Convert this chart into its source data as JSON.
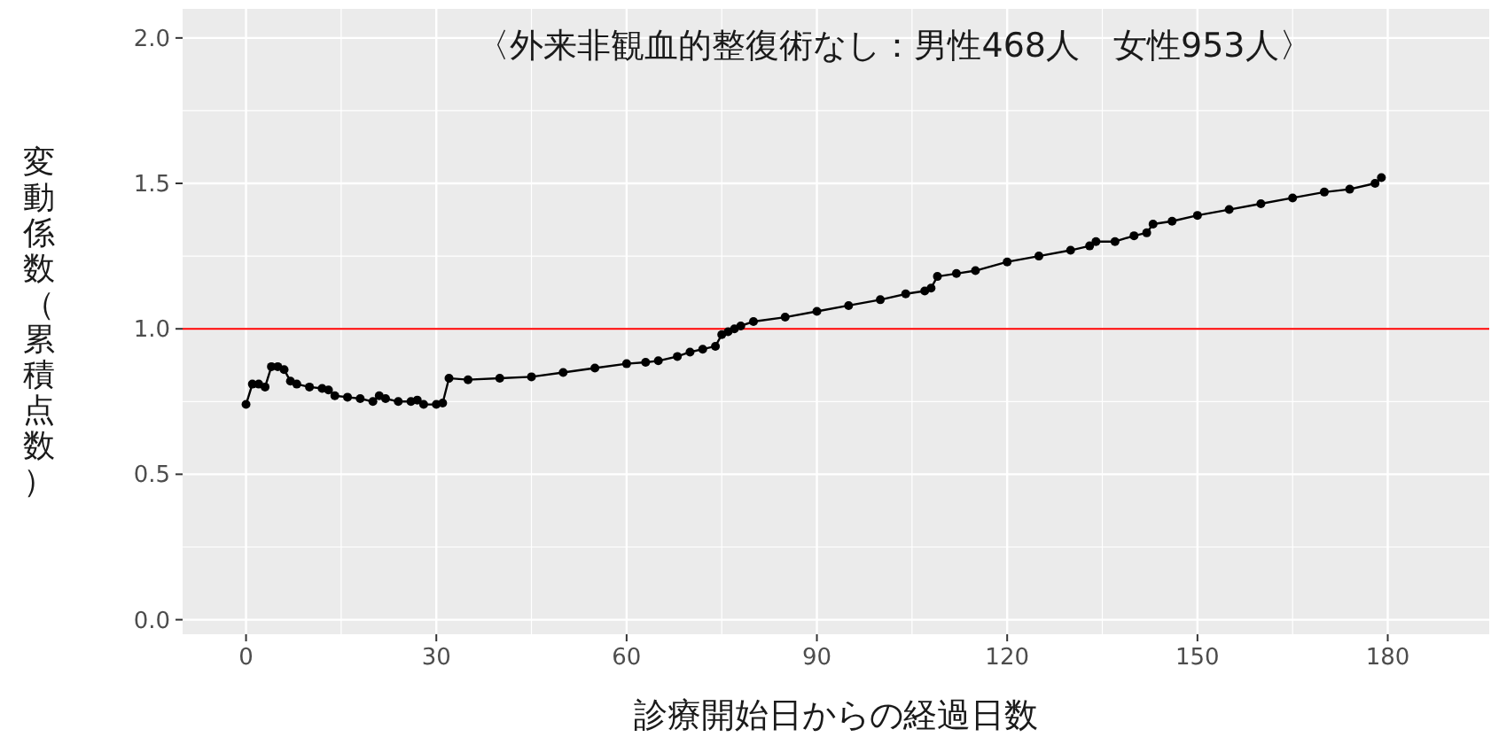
{
  "chart_data": {
    "type": "line",
    "title": "〈外来非観血的整復術なし：男性468人　女性953人〉",
    "xlabel": "診療開始日からの経過日数",
    "ylabel": "変動係数（累積点数）",
    "x": [
      0,
      1,
      2,
      3,
      4,
      5,
      6,
      7,
      8,
      10,
      12,
      13,
      14,
      16,
      18,
      20,
      21,
      22,
      24,
      26,
      27,
      28,
      30,
      31,
      32,
      35,
      40,
      45,
      50,
      55,
      60,
      63,
      65,
      68,
      70,
      72,
      74,
      75,
      76,
      77,
      78,
      80,
      85,
      90,
      95,
      100,
      104,
      107,
      108,
      109,
      112,
      115,
      120,
      125,
      130,
      133,
      134,
      137,
      140,
      142,
      143,
      146,
      150,
      155,
      160,
      165,
      170,
      174,
      178,
      179
    ],
    "series": [
      {
        "color": "#000000",
        "values": [
          0.74,
          0.81,
          0.81,
          0.8,
          0.87,
          0.87,
          0.86,
          0.82,
          0.81,
          0.8,
          0.795,
          0.79,
          0.77,
          0.765,
          0.76,
          0.75,
          0.77,
          0.76,
          0.75,
          0.75,
          0.755,
          0.74,
          0.74,
          0.745,
          0.83,
          0.825,
          0.83,
          0.835,
          0.85,
          0.865,
          0.88,
          0.885,
          0.89,
          0.905,
          0.92,
          0.93,
          0.94,
          0.98,
          0.99,
          1.0,
          1.01,
          1.025,
          1.04,
          1.06,
          1.08,
          1.1,
          1.12,
          1.13,
          1.14,
          1.18,
          1.19,
          1.2,
          1.23,
          1.25,
          1.27,
          1.285,
          1.3,
          1.3,
          1.32,
          1.33,
          1.36,
          1.37,
          1.39,
          1.41,
          1.43,
          1.45,
          1.47,
          1.48,
          1.5,
          1.52
        ]
      }
    ],
    "marker": "circle",
    "line_style": "solid",
    "ref_lines": [
      {
        "axis": "y",
        "value": 1.0,
        "color": "#ff0000"
      }
    ],
    "xlim": [
      -10,
      196
    ],
    "ylim": [
      -0.05,
      2.1
    ],
    "xticks": [
      0,
      30,
      60,
      90,
      120,
      150,
      180
    ],
    "yticks": [
      {
        "value": 0,
        "label": "0.0"
      },
      {
        "value": 0.5,
        "label": "0.5"
      },
      {
        "value": 1,
        "label": "1.0"
      },
      {
        "value": 1.5,
        "label": "1.5"
      },
      {
        "value": 2,
        "label": "2.0"
      }
    ],
    "grid": true
  }
}
